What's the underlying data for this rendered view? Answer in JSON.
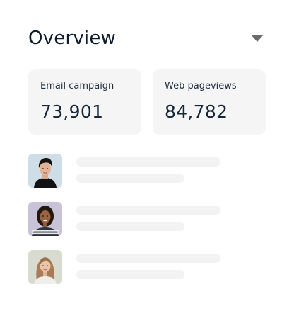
{
  "header": {
    "title": "Overview",
    "dropdown_icon": "caret-down-icon"
  },
  "stats": [
    {
      "label": "Email campaign",
      "value": "73,901"
    },
    {
      "label": "Web pageviews",
      "value": "84,782"
    }
  ],
  "people": [
    {
      "avatar_icon": "person-avatar-icon"
    },
    {
      "avatar_icon": "person-avatar-icon"
    },
    {
      "avatar_icon": "person-avatar-icon"
    }
  ],
  "colors": {
    "title": "#0c1b2e",
    "stat_background": "#f5f5f6",
    "skeleton": "#f3f3f4",
    "caret": "#6b6b6b"
  }
}
